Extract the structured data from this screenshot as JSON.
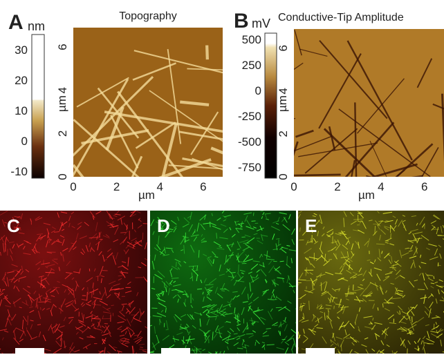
{
  "panels": [
    {
      "label": "A",
      "unit": "nm",
      "title": "Topography",
      "colorbar_ticks": [
        30,
        20,
        10,
        0,
        -10
      ],
      "xticks": [
        0,
        2,
        4,
        6
      ],
      "yticks": [
        0,
        2,
        4,
        6
      ],
      "xlabel": "µm",
      "ylabel": "µm"
    },
    {
      "label": "B",
      "unit": "mV",
      "title": "Conductive-Tip Amplitude",
      "colorbar_ticks": [
        500,
        250,
        0,
        -250,
        -500,
        -750
      ],
      "xticks": [
        0,
        2,
        4,
        6
      ],
      "yticks": [
        0,
        2,
        4,
        6
      ],
      "xlabel": "µm",
      "ylabel": "µm"
    }
  ],
  "micrographs": [
    {
      "label": "C"
    },
    {
      "label": "D"
    },
    {
      "label": "E"
    }
  ]
}
